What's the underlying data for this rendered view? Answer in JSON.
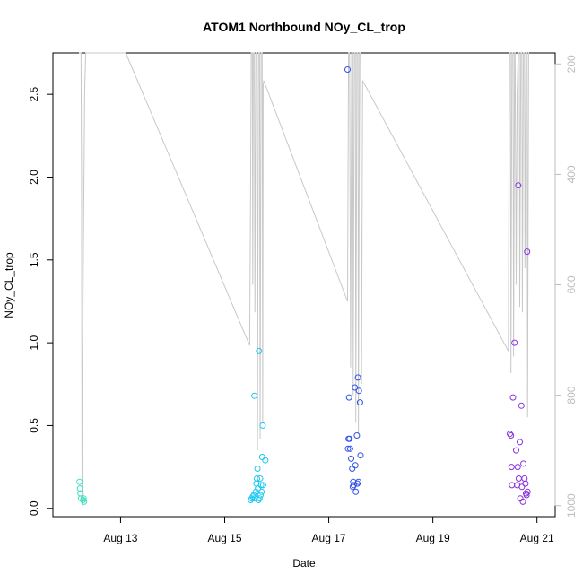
{
  "chart_data": {
    "type": "scatter",
    "title": "ATOM1 Northbound NOy_CL_trop",
    "xlabel": "Date",
    "ylabel": "NOy_CL_trop",
    "x_ticks": [
      {
        "label": "Aug 13",
        "value": 13
      },
      {
        "label": "Aug 15",
        "value": 15
      },
      {
        "label": "Aug 17",
        "value": 17
      },
      {
        "label": "Aug 19",
        "value": 19
      },
      {
        "label": "Aug 21",
        "value": 21
      }
    ],
    "xlim": [
      11.7,
      21.35
    ],
    "ylim": [
      -0.05,
      2.75
    ],
    "y_ticks": [
      "0.0",
      "0.5",
      "1.0",
      "1.5",
      "2.0",
      "2.5"
    ],
    "y2_ticks": [
      "200",
      "400",
      "600",
      "800",
      "1000"
    ],
    "y2lim": [
      180,
      1020
    ],
    "grid": false,
    "series": [
      {
        "color": "#40e0c0",
        "points": [
          [
            12.21,
            0.16
          ],
          [
            12.22,
            0.12
          ],
          [
            12.23,
            0.09
          ],
          [
            12.24,
            0.06
          ],
          [
            12.28,
            0.05
          ],
          [
            12.29,
            0.06
          ],
          [
            12.3,
            0.04
          ]
        ]
      },
      {
        "color": "#1ec8f0",
        "points": [
          [
            15.5,
            0.05
          ],
          [
            15.52,
            0.06
          ],
          [
            15.54,
            0.07
          ],
          [
            15.56,
            0.08
          ],
          [
            15.57,
            0.68
          ],
          [
            15.58,
            0.06
          ],
          [
            15.6,
            0.1
          ],
          [
            15.61,
            0.15
          ],
          [
            15.62,
            0.18
          ],
          [
            15.63,
            0.24
          ],
          [
            15.64,
            0.12
          ],
          [
            15.65,
            0.05
          ],
          [
            15.66,
            0.95
          ],
          [
            15.67,
            0.06
          ],
          [
            15.68,
            0.18
          ],
          [
            15.69,
            0.08
          ],
          [
            15.7,
            0.14
          ],
          [
            15.71,
            0.1
          ],
          [
            15.72,
            0.31
          ],
          [
            15.73,
            0.5
          ],
          [
            15.74,
            0.14
          ],
          [
            15.78,
            0.29
          ]
        ]
      },
      {
        "color": "#3050e8",
        "points": [
          [
            17.36,
            2.65
          ],
          [
            17.37,
            0.36
          ],
          [
            17.38,
            0.42
          ],
          [
            17.39,
            0.67
          ],
          [
            17.4,
            0.42
          ],
          [
            17.41,
            0.36
          ],
          [
            17.43,
            0.3
          ],
          [
            17.45,
            0.24
          ],
          [
            17.46,
            0.13
          ],
          [
            17.47,
            0.16
          ],
          [
            17.48,
            0.14
          ],
          [
            17.5,
            0.73
          ],
          [
            17.51,
            0.26
          ],
          [
            17.52,
            0.1
          ],
          [
            17.54,
            0.44
          ],
          [
            17.55,
            0.15
          ],
          [
            17.56,
            0.79
          ],
          [
            17.57,
            0.16
          ],
          [
            17.58,
            0.71
          ],
          [
            17.6,
            0.64
          ],
          [
            17.61,
            0.32
          ]
        ]
      },
      {
        "color": "#8a30e0",
        "points": [
          [
            20.48,
            0.45
          ],
          [
            20.5,
            0.44
          ],
          [
            20.51,
            0.25
          ],
          [
            20.52,
            0.14
          ],
          [
            20.54,
            0.67
          ],
          [
            20.57,
            1.0
          ],
          [
            20.6,
            0.35
          ],
          [
            20.62,
            0.14
          ],
          [
            20.63,
            0.25
          ],
          [
            20.64,
            1.95
          ],
          [
            20.65,
            0.18
          ],
          [
            20.67,
            0.4
          ],
          [
            20.68,
            0.06
          ],
          [
            20.7,
            0.62
          ],
          [
            20.71,
            0.13
          ],
          [
            20.73,
            0.04
          ],
          [
            20.74,
            0.27
          ],
          [
            20.76,
            0.18
          ],
          [
            20.78,
            0.15
          ],
          [
            20.79,
            0.09
          ],
          [
            20.8,
            0.08
          ],
          [
            20.81,
            1.55
          ],
          [
            20.82,
            0.1
          ]
        ]
      }
    ],
    "pressure_trace": {
      "color": "#c8c8c8",
      "axis": "right",
      "points": [
        [
          12.2,
          180
        ],
        [
          12.24,
          180
        ],
        [
          12.25,
          400
        ],
        [
          12.26,
          1000
        ],
        [
          12.28,
          600
        ],
        [
          12.31,
          250
        ],
        [
          12.33,
          180
        ],
        [
          12.36,
          180
        ],
        [
          13.1,
          180
        ],
        [
          15.48,
          710
        ],
        [
          15.5,
          400
        ],
        [
          15.51,
          180
        ],
        [
          15.53,
          180
        ],
        [
          15.54,
          600
        ],
        [
          15.55,
          180
        ],
        [
          15.57,
          180
        ],
        [
          15.58,
          650
        ],
        [
          15.6,
          180
        ],
        [
          15.62,
          180
        ],
        [
          15.63,
          900
        ],
        [
          15.65,
          180
        ],
        [
          15.67,
          180
        ],
        [
          15.68,
          880
        ],
        [
          15.7,
          180
        ],
        [
          15.72,
          180
        ],
        [
          15.73,
          850
        ],
        [
          15.74,
          240
        ],
        [
          15.75,
          230
        ],
        [
          17.36,
          630
        ],
        [
          17.38,
          180
        ],
        [
          17.4,
          180
        ],
        [
          17.42,
          750
        ],
        [
          17.44,
          180
        ],
        [
          17.46,
          180
        ],
        [
          17.47,
          800
        ],
        [
          17.49,
          180
        ],
        [
          17.51,
          180
        ],
        [
          17.52,
          850
        ],
        [
          17.54,
          180
        ],
        [
          17.56,
          180
        ],
        [
          17.57,
          870
        ],
        [
          17.59,
          180
        ],
        [
          17.61,
          180
        ],
        [
          17.63,
          780
        ],
        [
          17.65,
          230
        ],
        [
          20.45,
          720
        ],
        [
          20.47,
          180
        ],
        [
          20.49,
          180
        ],
        [
          20.5,
          760
        ],
        [
          20.52,
          180
        ],
        [
          20.54,
          180
        ],
        [
          20.55,
          730
        ],
        [
          20.57,
          180
        ],
        [
          20.58,
          180
        ],
        [
          20.6,
          600
        ],
        [
          20.62,
          250
        ],
        [
          20.64,
          180
        ],
        [
          20.66,
          180
        ],
        [
          20.67,
          640
        ],
        [
          20.69,
          180
        ],
        [
          20.71,
          180
        ],
        [
          20.72,
          650
        ],
        [
          20.74,
          180
        ],
        [
          20.76,
          180
        ],
        [
          20.77,
          570
        ],
        [
          20.79,
          180
        ],
        [
          20.81,
          180
        ],
        [
          20.82,
          840
        ],
        [
          20.84,
          180
        ],
        [
          20.85,
          180
        ]
      ]
    }
  }
}
